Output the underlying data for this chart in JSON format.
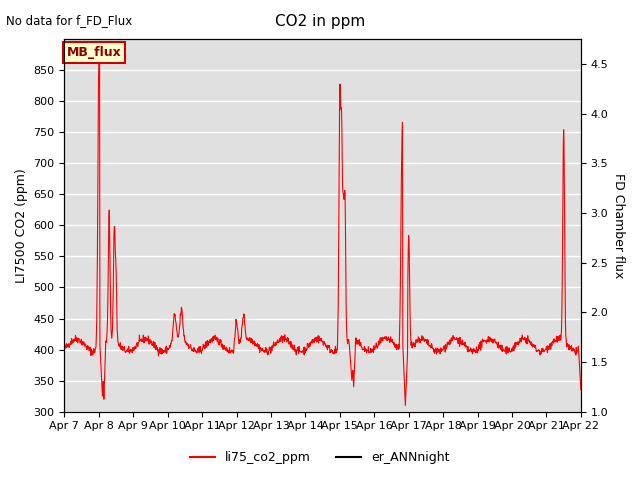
{
  "title": "CO2 in ppm",
  "top_left_text": "No data for f_FD_Flux",
  "ylabel_left": "LI7500 CO2 (ppm)",
  "ylabel_right": "FD Chamber flux",
  "ylim_left": [
    300,
    900
  ],
  "ylim_right": [
    1.0,
    4.75
  ],
  "yticks_left": [
    300,
    350,
    400,
    450,
    500,
    550,
    600,
    650,
    700,
    750,
    800,
    850
  ],
  "yticks_right": [
    1.0,
    1.5,
    2.0,
    2.5,
    3.0,
    3.5,
    4.0,
    4.5
  ],
  "xtick_labels": [
    "Apr 7",
    "Apr 8",
    "Apr 9",
    "Apr 10",
    "Apr 11",
    "Apr 12",
    "Apr 13",
    "Apr 14",
    "Apr 15",
    "Apr 16",
    "Apr 17",
    "Apr 18",
    "Apr 19",
    "Apr 20",
    "Apr 21",
    "Apr 22"
  ],
  "legend_labels": [
    "li75_co2_ppm",
    "er_ANNnight"
  ],
  "legend_colors": [
    "red",
    "black"
  ],
  "line1_color": "red",
  "line2_color": "black",
  "plot_bg_color": "#e0e0e0",
  "mb_flux_label": "MB_flux",
  "mb_flux_bg": "#ffffcc",
  "mb_flux_border": "#cc0000"
}
